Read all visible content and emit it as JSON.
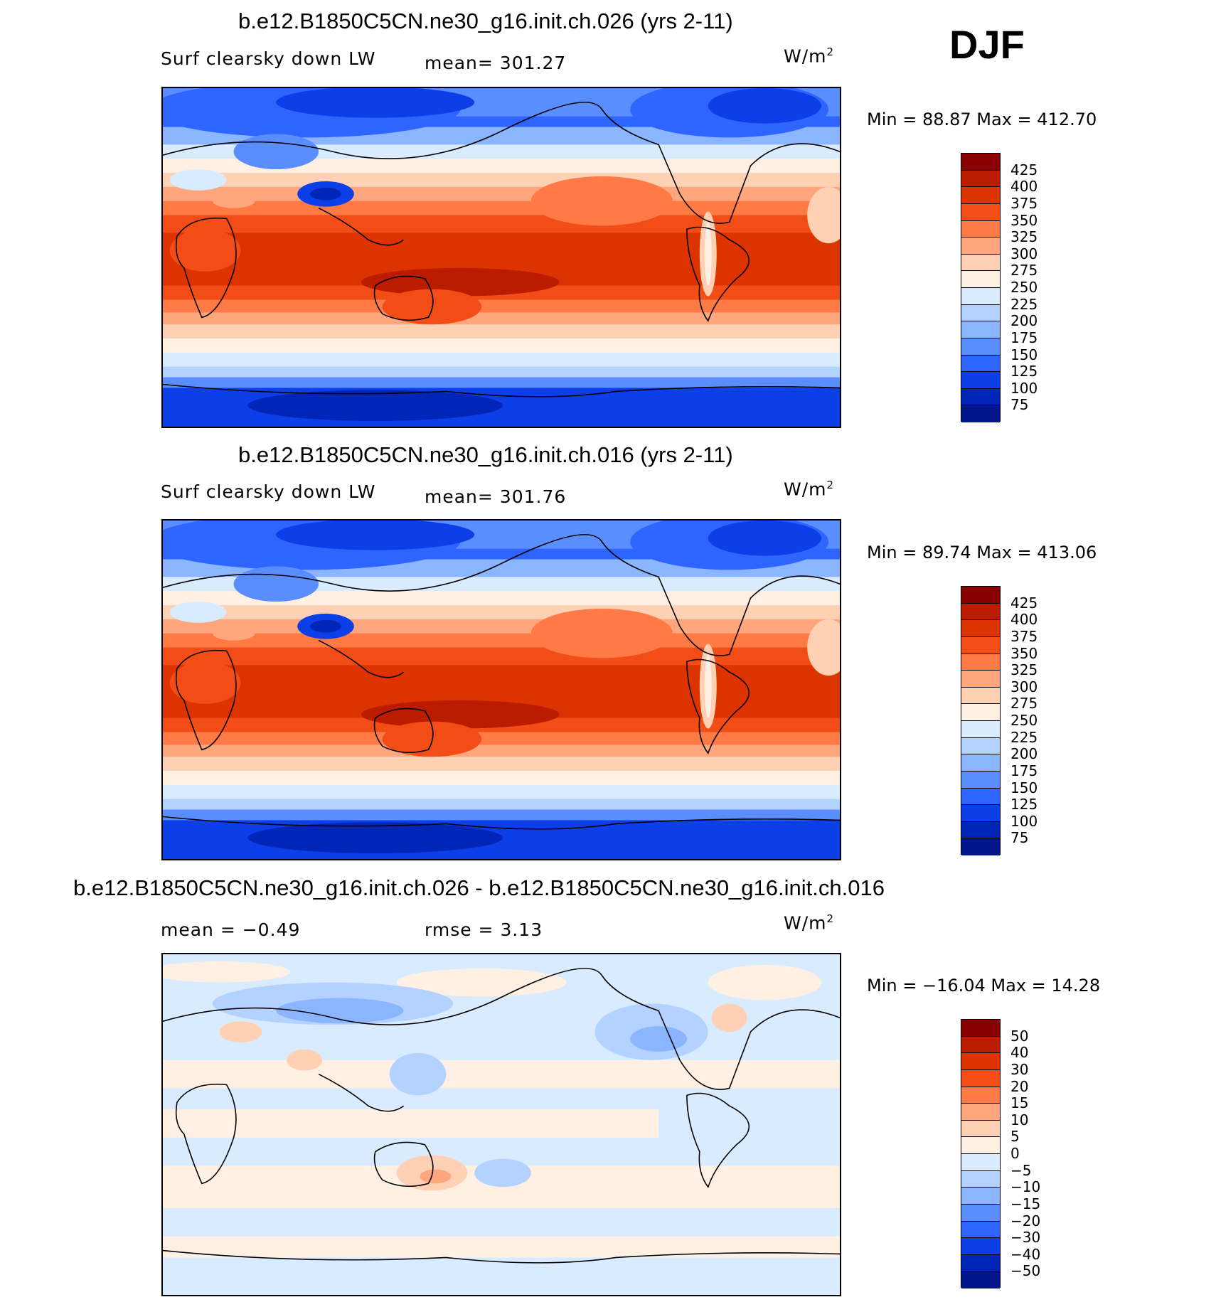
{
  "season": "DJF",
  "panels": [
    {
      "title": "b.e12.B1850C5CN.ne30_g16.init.ch.026 (yrs 2-11)",
      "variable": "Surf clearsky down LW",
      "stat": "mean= 301.27",
      "units": "W/m",
      "units_exp": "2",
      "minmax": "Min =   88.87  Max  =  412.70",
      "kind": "abs"
    },
    {
      "title": "b.e12.B1850C5CN.ne30_g16.init.ch.016 (yrs 2-11)",
      "variable": "Surf clearsky down LW",
      "stat": "mean= 301.76",
      "units": "W/m",
      "units_exp": "2",
      "minmax": "Min =   89.74  Max  =  413.06",
      "kind": "abs"
    },
    {
      "title": "b.e12.B1850C5CN.ne30_g16.init.ch.026 - b.e12.B1850C5CN.ne30_g16.init.ch.016",
      "variable": "mean =    −0.49",
      "stat": "rmse =     3.13",
      "units": "W/m",
      "units_exp": "2",
      "minmax": "Min  = −16.04  Max  =    14.28",
      "kind": "diff"
    }
  ],
  "chart_data": [
    {
      "type": "heatmap",
      "title": "b.e12.B1850C5CN.ne30_g16.init.ch.026 (yrs 2-11)",
      "variable": "Surf clearsky down LW",
      "mean": 301.27,
      "min": 88.87,
      "max": 412.7,
      "units": "W/m2",
      "colorbar_levels": [
        "425",
        "400",
        "375",
        "350",
        "325",
        "300",
        "275",
        "250",
        "225",
        "200",
        "175",
        "150",
        "125",
        "100",
        "75"
      ],
      "colorbar_colors": [
        "#880000",
        "#bb1c00",
        "#dd3300",
        "#f24d17",
        "#ff7a45",
        "#ffa67d",
        "#ffd0b4",
        "#fff0e3",
        "#d8ebff",
        "#b3d2ff",
        "#8cb5ff",
        "#5a8eff",
        "#2f65ff",
        "#0c3fe8",
        "#0026b8",
        "#00178a"
      ]
    },
    {
      "type": "heatmap",
      "title": "b.e12.B1850C5CN.ne30_g16.init.ch.016 (yrs 2-11)",
      "variable": "Surf clearsky down LW",
      "mean": 301.76,
      "min": 89.74,
      "max": 413.06,
      "units": "W/m2",
      "colorbar_levels": [
        "425",
        "400",
        "375",
        "350",
        "325",
        "300",
        "275",
        "250",
        "225",
        "200",
        "175",
        "150",
        "125",
        "100",
        "75"
      ],
      "colorbar_colors": [
        "#880000",
        "#bb1c00",
        "#dd3300",
        "#f24d17",
        "#ff7a45",
        "#ffa67d",
        "#ffd0b4",
        "#fff0e3",
        "#d8ebff",
        "#b3d2ff",
        "#8cb5ff",
        "#5a8eff",
        "#2f65ff",
        "#0c3fe8",
        "#0026b8",
        "#00178a"
      ]
    },
    {
      "type": "heatmap",
      "title": "b.e12.B1850C5CN.ne30_g16.init.ch.026 - b.e12.B1850C5CN.ne30_g16.init.ch.016",
      "mean": -0.49,
      "rmse": 3.13,
      "min": -16.04,
      "max": 14.28,
      "units": "W/m2",
      "colorbar_levels": [
        "50",
        "40",
        "30",
        "20",
        "15",
        "10",
        "5",
        "0",
        "−5",
        "−10",
        "−15",
        "−20",
        "−30",
        "−40",
        "−50"
      ],
      "colorbar_colors": [
        "#880000",
        "#bb1c00",
        "#dd3300",
        "#f24d17",
        "#ff7a45",
        "#ffa67d",
        "#ffd0b4",
        "#fff0e3",
        "#d8ebff",
        "#b3d2ff",
        "#8cb5ff",
        "#5a8eff",
        "#2f65ff",
        "#0c3fe8",
        "#0026b8",
        "#00178a"
      ]
    }
  ]
}
